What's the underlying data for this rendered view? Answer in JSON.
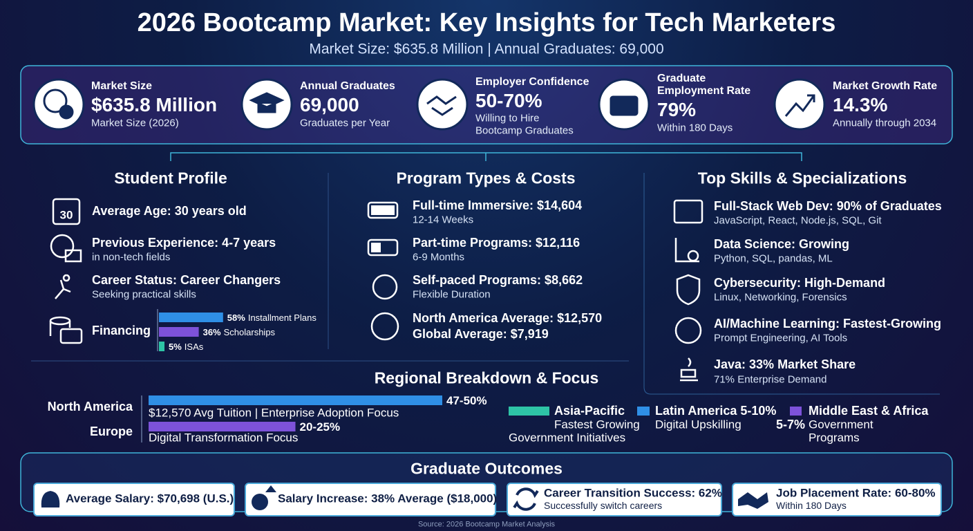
{
  "header": {
    "title": "2026 Bootcamp Market: Key Insights for Tech Marketers",
    "subtitle": "Market Size: $635.8 Million | Annual Graduates: 69,000"
  },
  "kpis": [
    {
      "label": "Market Size",
      "value": "$635.8 Million",
      "note": "Market Size (2026)"
    },
    {
      "label": "Annual Graduates",
      "value": "69,000",
      "note": "Graduates per Year"
    },
    {
      "label": "Employer Confidence",
      "value": "50-70%",
      "note": "Willing to Hire",
      "note2": "Bootcamp Graduates"
    },
    {
      "label": "Graduate",
      "label2": "Employment Rate",
      "value": "79%",
      "note": "Within 180 Days"
    },
    {
      "label": "Market Growth Rate",
      "value": "14.3%",
      "note": "Annually through 2034"
    }
  ],
  "student_profile": {
    "title": "Student Profile",
    "calendar_day": "30",
    "items": [
      {
        "title": "Average Age: 30 years old"
      },
      {
        "title": "Previous Experience: 4-7 years",
        "note": "in non-tech fields"
      },
      {
        "title": "Career Status: Career Changers",
        "note": "Seeking practical skills"
      }
    ],
    "financing": {
      "title": "Financing",
      "categories": [
        "Installment Plans",
        "Scholarships",
        "ISAs"
      ],
      "values": [
        58,
        36,
        5
      ],
      "value_labels": [
        "58%",
        "36%",
        "5%"
      ],
      "colors": [
        "#2f8fe6",
        "#7d52d9",
        "#2ec4a6"
      ]
    }
  },
  "program_types": {
    "title": "Program Types & Costs",
    "items": [
      {
        "title": "Full-time Immersive: $14,604",
        "note": "12-14 Weeks"
      },
      {
        "title": "Part-time Programs: $12,116",
        "note": "6-9 Months"
      },
      {
        "title": "Self-paced Programs: $8,662",
        "note": "Flexible Duration"
      },
      {
        "title": "North America Average: $12,570",
        "title2": "Global Average: $7,919"
      }
    ]
  },
  "skills": {
    "title": "Top Skills & Specializations",
    "items": [
      {
        "title": "Full-Stack Web Dev: 90% of Graduates",
        "note": "JavaScript, React, Node.js, SQL, Git"
      },
      {
        "title": "Data Science: Growing",
        "note": "Python, SQL, pandas, ML"
      },
      {
        "title": "Cybersecurity: High-Demand",
        "note": "Linux, Networking, Forensics"
      },
      {
        "title": "AI/Machine Learning: Fastest-Growing",
        "note": "Prompt Engineering, AI Tools"
      },
      {
        "title": "Java: 33% Market Share",
        "note": "71% Enterprise Demand"
      }
    ]
  },
  "regional": {
    "title": "Regional Breakdown & Focus",
    "color": "#2f8fe6",
    "color2": "#7d52d9",
    "bars": [
      {
        "region": "North America",
        "low": 47,
        "high": 50,
        "range_label": "47-50%",
        "note": "$12,570 Avg Tuition | Enterprise Adoption Focus"
      },
      {
        "region": "Europe",
        "low": 20,
        "high": 25,
        "range_label": "20-25%",
        "note": "Digital Transformation Focus"
      }
    ],
    "legend": [
      {
        "name": "Asia-Pacific",
        "color": "#2ec4a6",
        "note": "Fastest Growing",
        "note2": "Government Initiatives"
      },
      {
        "name": "Latin America 5-10%",
        "color": "#2f8fe6",
        "note": "Digital Upskilling"
      },
      {
        "name": "Middle East & Africa",
        "range_label": "5-7%",
        "color": "#7d52d9",
        "note": "Government",
        "note2": "Programs"
      }
    ]
  },
  "outcomes": {
    "title": "Graduate Outcomes",
    "items": [
      {
        "title": "Average Salary: $70,698 (U.S.)"
      },
      {
        "title": "Salary Increase: 38% Average ($18,000)"
      },
      {
        "title": "Career Transition Success: 62%",
        "note": "Successfully switch careers"
      },
      {
        "title": "Job Placement Rate: 60-80%",
        "note": "Within 180 Days"
      }
    ]
  },
  "source": "Source: 2026 Bootcamp Market Analysis"
}
